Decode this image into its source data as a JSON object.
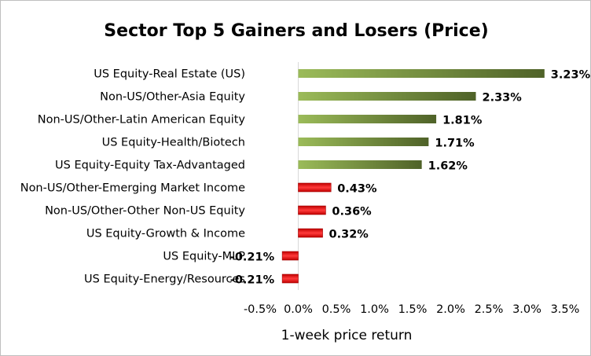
{
  "chart_data": {
    "type": "bar",
    "orientation": "horizontal",
    "title": "Sector Top 5 Gainers and Losers (Price)",
    "xlabel": "1-week price return",
    "ylabel": "",
    "xlim": [
      -0.5,
      3.5
    ],
    "ticks": [
      "-0.5%",
      "0.0%",
      "0.5%",
      "1.0%",
      "1.5%",
      "2.0%",
      "2.5%",
      "3.0%",
      "3.5%"
    ],
    "tick_values": [
      -0.5,
      0.0,
      0.5,
      1.0,
      1.5,
      2.0,
      2.5,
      3.0,
      3.5
    ],
    "grid": false,
    "legend": "none",
    "categories": [
      "US Equity-Real Estate (US)",
      "Non-US/Other-Asia Equity",
      "Non-US/Other-Latin American Equity",
      "US Equity-Health/Biotech",
      "US Equity-Equity Tax-Advantaged",
      "Non-US/Other-Emerging Market Income",
      "Non-US/Other-Other Non-US Equity",
      "US Equity-Growth & Income",
      "US Equity-MLP",
      "US Equity-Energy/Resources"
    ],
    "values": [
      3.23,
      2.33,
      1.81,
      1.71,
      1.62,
      0.43,
      0.36,
      0.32,
      -0.21,
      -0.21
    ],
    "value_labels": [
      "3.23%",
      "2.33%",
      "1.81%",
      "1.71%",
      "1.62%",
      "0.43%",
      "0.36%",
      "0.32%",
      "-0.21%",
      "-0.21%"
    ],
    "colors": {
      "gainer_start": "#9bbb59",
      "gainer_end": "#4f6228",
      "loser_start": "#c00000",
      "loser_mid": "#ff3b3b",
      "axis": "#d9d9d9"
    }
  }
}
